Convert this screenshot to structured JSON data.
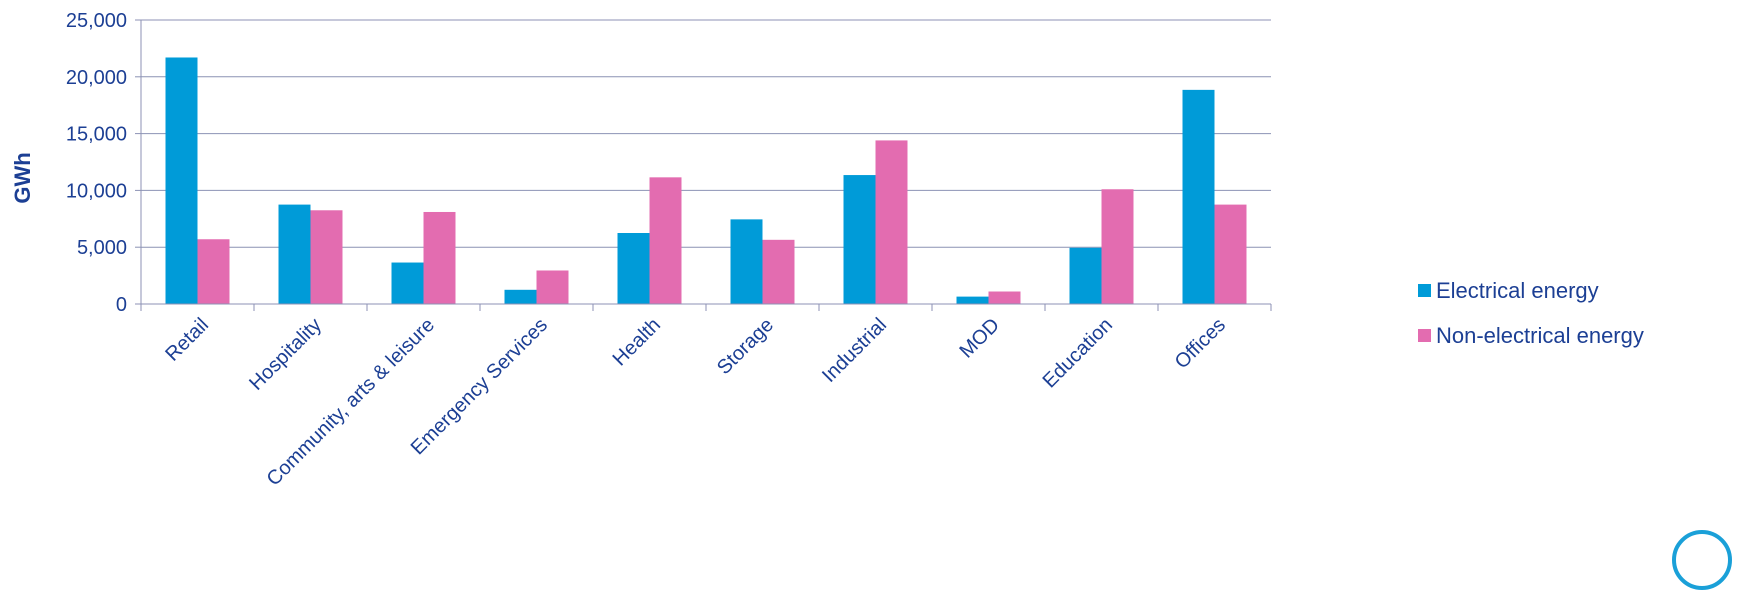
{
  "chart_data": {
    "type": "bar",
    "title": "",
    "xlabel": "",
    "ylabel": "GWh",
    "ylim": [
      0,
      25000
    ],
    "yticks": [
      "0",
      "5,000",
      "10,000",
      "15,000",
      "20,000",
      "25,000"
    ],
    "categories": [
      "Retail",
      "Hospitality",
      "Community, arts & leisure",
      "Emergency Services",
      "Health",
      "Storage",
      "Industrial",
      "MOD",
      "Education",
      "Offices"
    ],
    "series": [
      {
        "name": "Electrical energy",
        "color": "#009bd8",
        "values": [
          21700,
          8750,
          3650,
          1250,
          6250,
          7450,
          11350,
          650,
          4950,
          18850
        ]
      },
      {
        "name": "Non-electrical energy",
        "color": "#e36cb0",
        "values": [
          5700,
          8250,
          8100,
          2950,
          11150,
          5650,
          14400,
          1100,
          10100,
          8750
        ]
      }
    ],
    "grid": true,
    "legend_position": "right"
  },
  "colors": {
    "axis_text": "#1c3f94",
    "grid": "#8c92b4",
    "logo": "#1aa0d8"
  },
  "logo_icon": "circle-logo-icon"
}
